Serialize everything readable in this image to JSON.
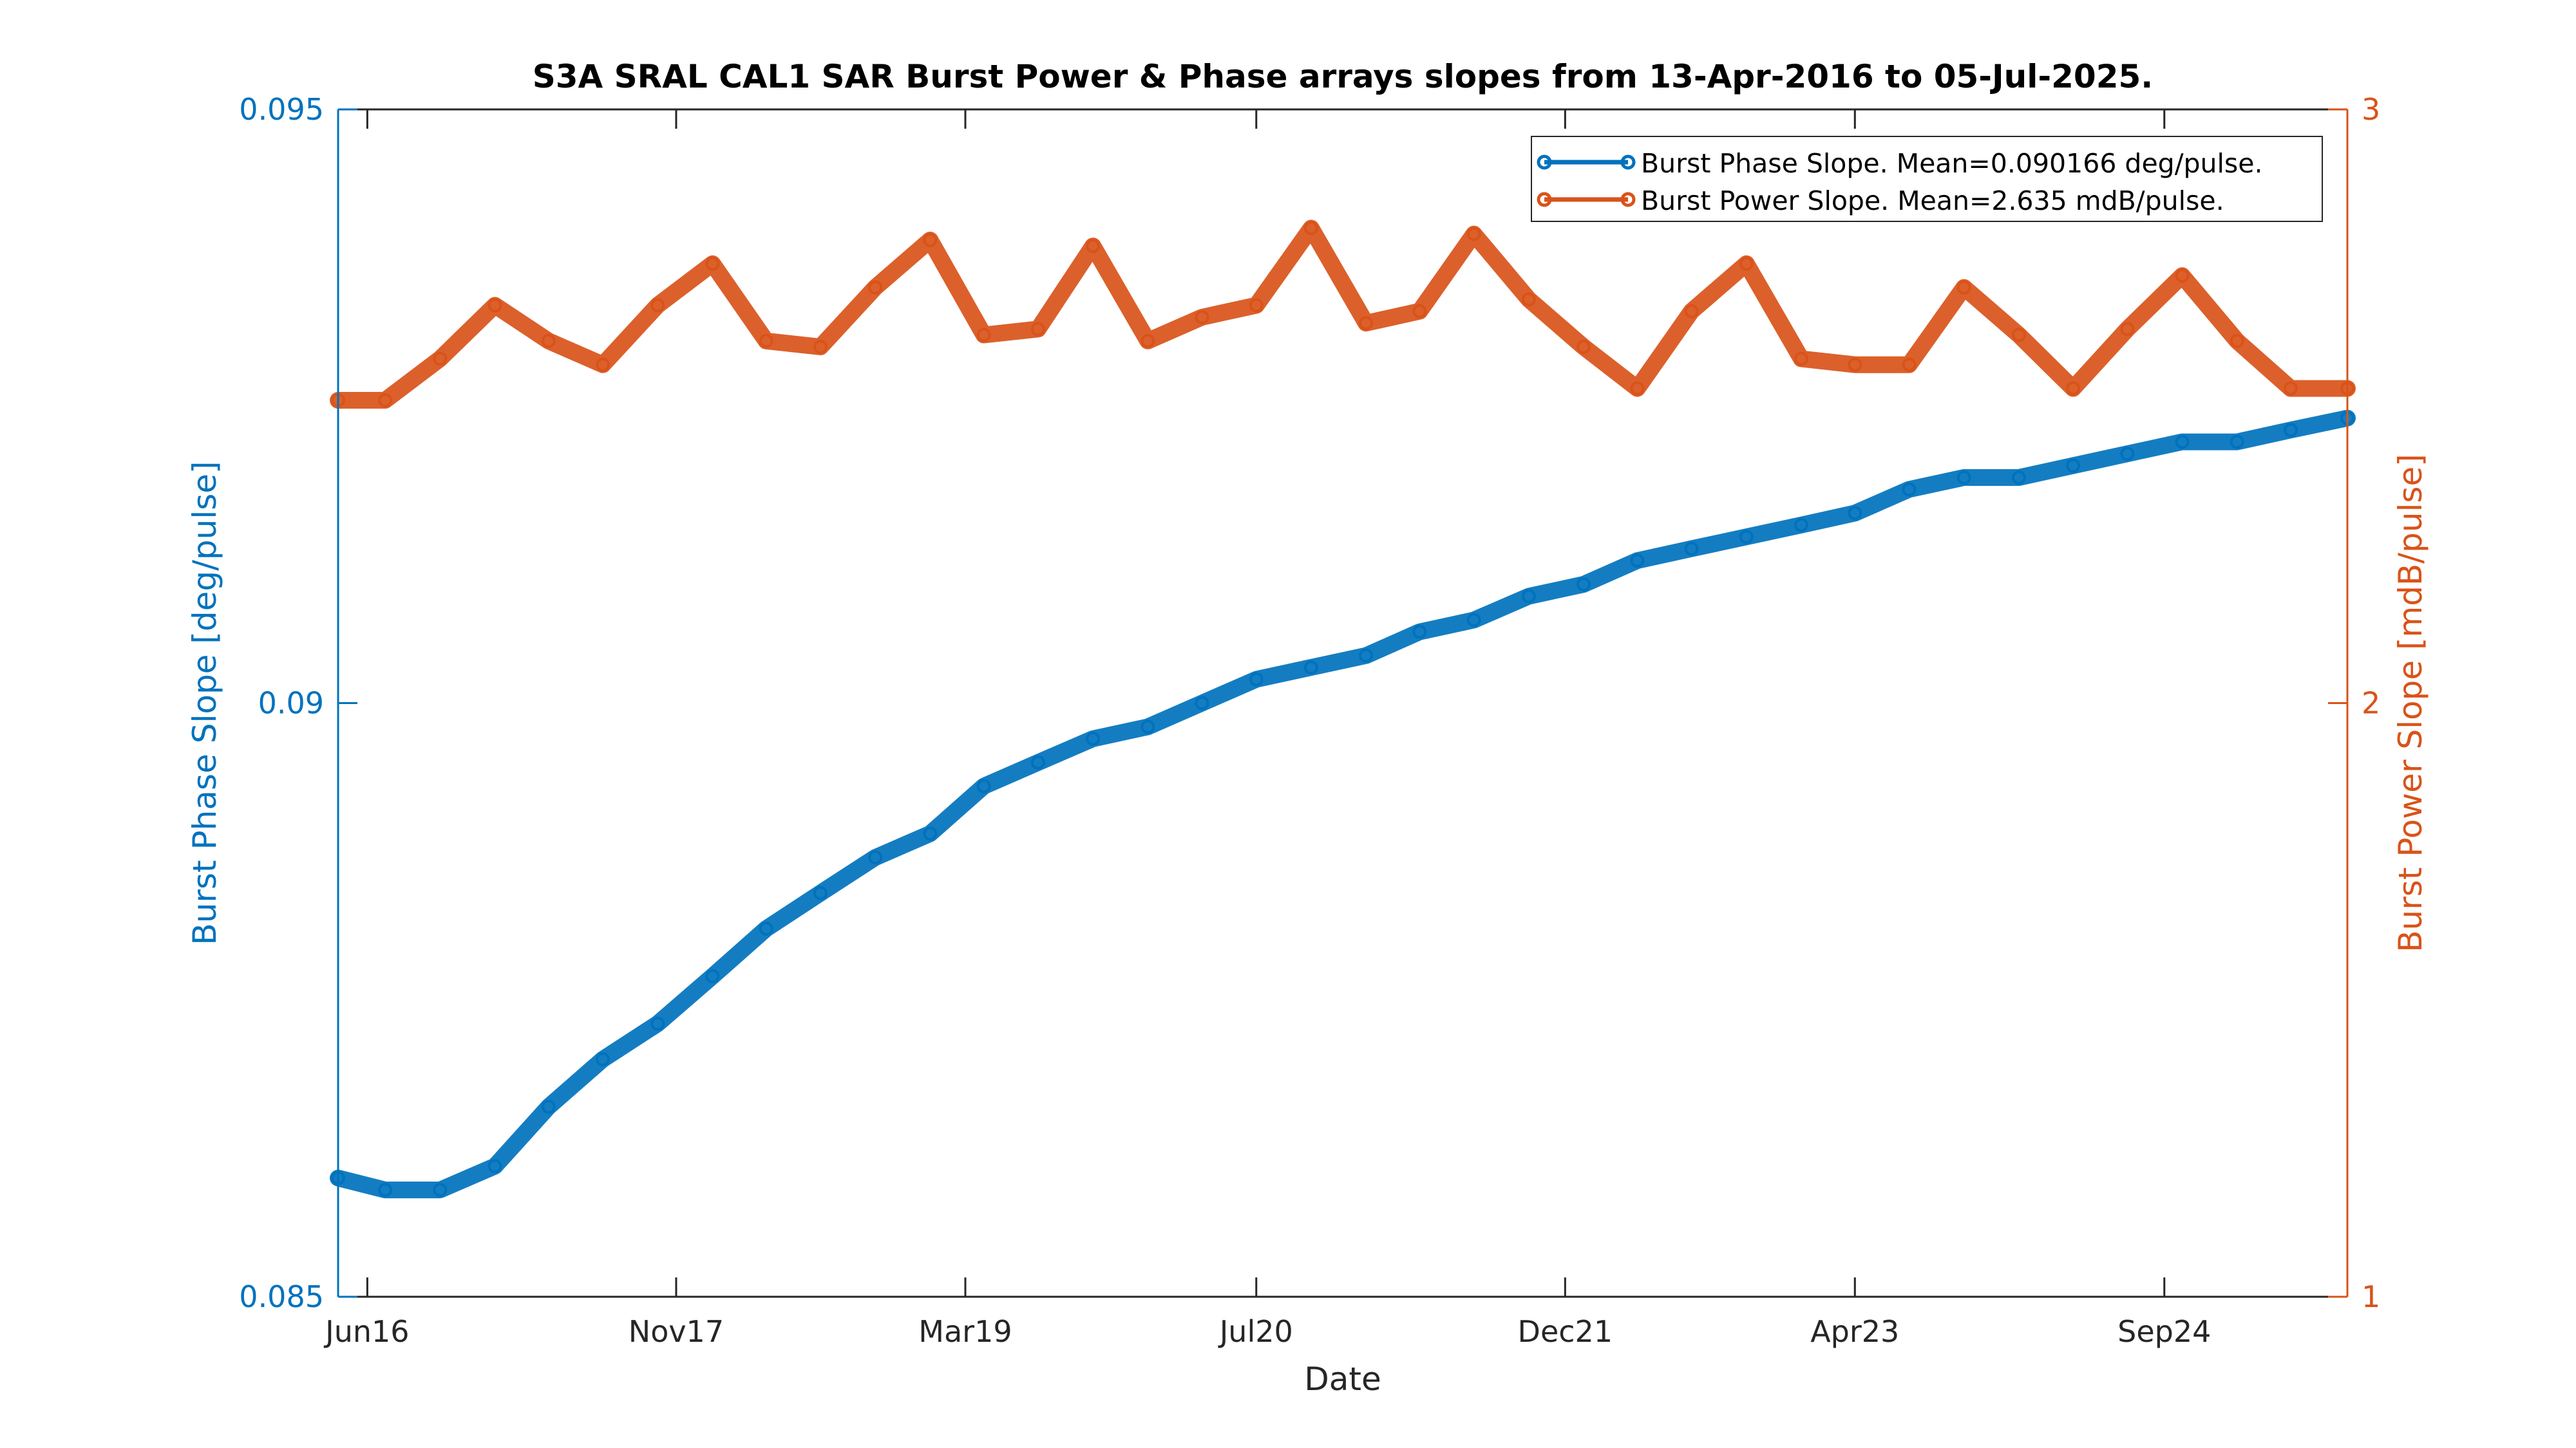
{
  "chart_data": {
    "type": "line",
    "title": "S3A SRAL CAL1 SAR Burst Power & Phase arrays slopes from 13-Apr-2016 to 05-Jul-2025.",
    "xlabel": "Date",
    "ylabel_left": "Burst Phase Slope [deg/pulse]",
    "ylabel_right": "Burst Power Slope [mdB/pulse]",
    "x_range": [
      "2016-04-13",
      "2025-07-05"
    ],
    "x_ticks": [
      {
        "date": "2016-06-01",
        "label": "Jun16"
      },
      {
        "date": "2017-11-01",
        "label": "Nov17"
      },
      {
        "date": "2019-03-01",
        "label": "Mar19"
      },
      {
        "date": "2020-07-01",
        "label": "Jul20"
      },
      {
        "date": "2021-12-01",
        "label": "Dec21"
      },
      {
        "date": "2023-04-01",
        "label": "Apr23"
      },
      {
        "date": "2024-09-01",
        "label": "Sep24"
      }
    ],
    "ylim_left": [
      0.085,
      0.095
    ],
    "yticks_left": [
      "0.085",
      "0.09",
      "0.095"
    ],
    "ylim_right": [
      1,
      3
    ],
    "yticks_right": [
      "1",
      "2",
      "3"
    ],
    "grid": false,
    "legend_position": "top-right",
    "colors": {
      "phase": "#0072BD",
      "power": "#D95319",
      "axis": "#262626"
    },
    "series": [
      {
        "name": "Burst Phase Slope. Mean=0.090166 deg/pulse.",
        "axis": "left",
        "x": [
          "2016-04-13",
          "2016-07-01",
          "2016-10-01",
          "2017-01-01",
          "2017-04-01",
          "2017-07-01",
          "2017-10-01",
          "2018-01-01",
          "2018-04-01",
          "2018-07-01",
          "2018-10-01",
          "2019-01-01",
          "2019-04-01",
          "2019-07-01",
          "2019-10-01",
          "2020-01-01",
          "2020-04-01",
          "2020-07-01",
          "2020-10-01",
          "2021-01-01",
          "2021-04-01",
          "2021-07-01",
          "2021-10-01",
          "2022-01-01",
          "2022-04-01",
          "2022-07-01",
          "2022-10-01",
          "2023-01-01",
          "2023-04-01",
          "2023-07-01",
          "2023-10-01",
          "2024-01-01",
          "2024-04-01",
          "2024-07-01",
          "2024-10-01",
          "2025-01-01",
          "2025-04-01",
          "2025-07-05"
        ],
        "values": [
          0.086,
          0.0859,
          0.0859,
          0.0861,
          0.0866,
          0.087,
          0.0873,
          0.0877,
          0.0881,
          0.0884,
          0.0887,
          0.0889,
          0.0893,
          0.0895,
          0.0897,
          0.0898,
          0.09,
          0.0902,
          0.0903,
          0.0904,
          0.0906,
          0.0907,
          0.0909,
          0.091,
          0.0912,
          0.0913,
          0.0914,
          0.0915,
          0.0916,
          0.0918,
          0.0919,
          0.0919,
          0.092,
          0.0921,
          0.0922,
          0.0922,
          0.0923,
          0.0924
        ]
      },
      {
        "name": "Burst Power Slope. Mean=2.635 mdB/pulse.",
        "axis": "right",
        "x": [
          "2016-04-13",
          "2016-07-01",
          "2016-10-01",
          "2017-01-01",
          "2017-04-01",
          "2017-07-01",
          "2017-10-01",
          "2018-01-01",
          "2018-04-01",
          "2018-07-01",
          "2018-10-01",
          "2019-01-01",
          "2019-04-01",
          "2019-07-01",
          "2019-10-01",
          "2020-01-01",
          "2020-04-01",
          "2020-07-01",
          "2020-10-01",
          "2021-01-01",
          "2021-04-01",
          "2021-07-01",
          "2021-10-01",
          "2022-01-01",
          "2022-04-01",
          "2022-07-01",
          "2022-10-01",
          "2023-01-01",
          "2023-04-01",
          "2023-07-01",
          "2023-10-01",
          "2024-01-01",
          "2024-04-01",
          "2024-07-01",
          "2024-10-01",
          "2025-01-01",
          "2025-04-01",
          "2025-07-05"
        ],
        "values": [
          2.51,
          2.51,
          2.58,
          2.67,
          2.61,
          2.57,
          2.67,
          2.74,
          2.61,
          2.6,
          2.7,
          2.78,
          2.62,
          2.63,
          2.77,
          2.61,
          2.65,
          2.67,
          2.8,
          2.64,
          2.66,
          2.79,
          2.68,
          2.6,
          2.53,
          2.66,
          2.74,
          2.58,
          2.57,
          2.57,
          2.7,
          2.62,
          2.53,
          2.63,
          2.72,
          2.61,
          2.53,
          2.53
        ]
      }
    ]
  }
}
